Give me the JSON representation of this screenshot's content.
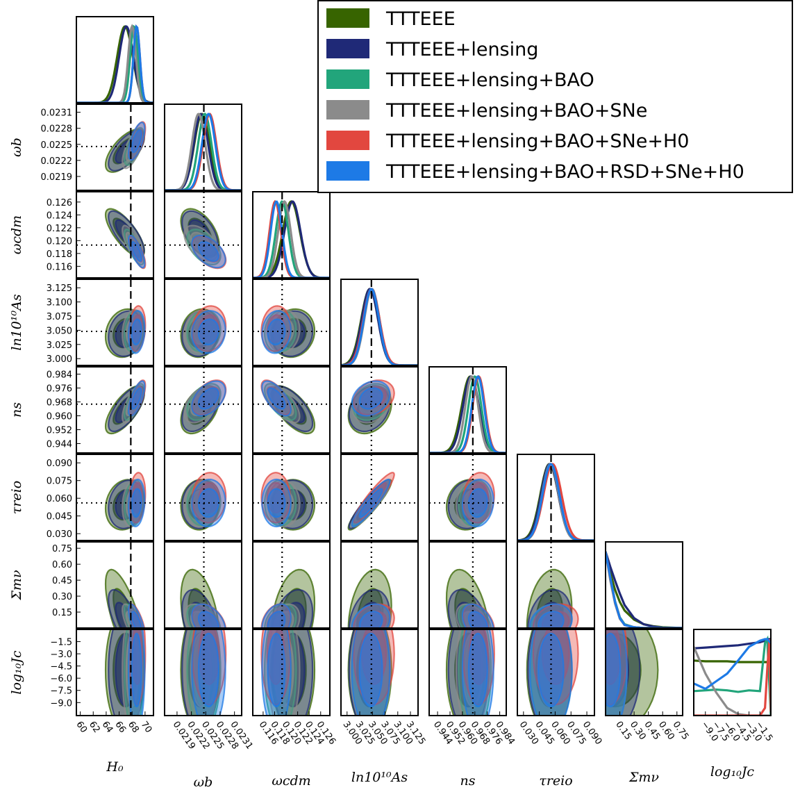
{
  "chart_data": {
    "type": "scatter",
    "kind": "triangle corner plot: 1D marginal posteriors on the diagonal, 68%/95% 2D credible contours below",
    "parameters": [
      {
        "key": "H0",
        "label": "H₀",
        "range": [
          59.4,
          71.3
        ],
        "ticks": [
          60,
          62,
          64,
          66,
          68,
          70
        ],
        "tick_labels": [
          "60",
          "62",
          "64",
          "66",
          "68",
          "70"
        ],
        "fiducial": 67.8,
        "line": "dashed"
      },
      {
        "key": "omega_b",
        "label": "ωb",
        "range": [
          0.02164,
          0.02325
        ],
        "ticks": [
          0.0219,
          0.0222,
          0.0225,
          0.0228,
          0.0231
        ],
        "tick_labels": [
          "0.0219",
          "0.0222",
          "0.0225",
          "0.0228",
          "0.0231"
        ],
        "fiducial": 0.02246,
        "line": "dotted"
      },
      {
        "key": "omega_cdm",
        "label": "ωcdm",
        "range": [
          0.1142,
          0.1276
        ],
        "ticks": [
          0.116,
          0.118,
          0.12,
          0.122,
          0.124,
          0.126
        ],
        "tick_labels": [
          "0.116",
          "0.118",
          "0.120",
          "0.122",
          "0.124",
          "0.126"
        ],
        "fiducial": 0.1193,
        "line": "dotted"
      },
      {
        "key": "ln10_10_As",
        "label": "ln10¹⁰As",
        "range": [
          2.988,
          3.14
        ],
        "ticks": [
          3.0,
          3.025,
          3.05,
          3.075,
          3.1,
          3.125
        ],
        "tick_labels": [
          "3.000",
          "3.025",
          "3.050",
          "3.075",
          "3.100",
          "3.125"
        ],
        "fiducial": 3.048,
        "line": "dotted"
      },
      {
        "key": "n_s",
        "label": "ns",
        "range": [
          0.9386,
          0.9882
        ],
        "ticks": [
          0.944,
          0.952,
          0.96,
          0.968,
          0.976,
          0.984
        ],
        "tick_labels": [
          "0.944",
          "0.952",
          "0.960",
          "0.968",
          "0.976",
          "0.984"
        ],
        "fiducial": 0.9667,
        "line": "dotted"
      },
      {
        "key": "tau_reio",
        "label": "τreio",
        "range": [
          0.0242,
          0.0972
        ],
        "ticks": [
          0.03,
          0.045,
          0.06,
          0.075,
          0.09
        ],
        "tick_labels": [
          "0.030",
          "0.045",
          "0.060",
          "0.075",
          "0.090"
        ],
        "fiducial": 0.0561,
        "line": "dotted"
      },
      {
        "key": "sum_mnu",
        "label": "Σmν",
        "range": [
          0.0,
          0.81
        ],
        "ticks": [
          0.15,
          0.3,
          0.45,
          0.6,
          0.75
        ],
        "tick_labels": [
          "0.15",
          "0.30",
          "0.45",
          "0.60",
          "0.75"
        ],
        "fiducial": null,
        "line": "none"
      },
      {
        "key": "log10_Jc",
        "label": "log₁₀Jc",
        "range": [
          -10.6,
          0.0
        ],
        "ticks": [
          -9.0,
          -7.5,
          -6.0,
          -4.5,
          -3.0,
          -1.5
        ],
        "tick_labels": [
          "−9.0",
          "−7.5",
          "−6.0",
          "−4.5",
          "−3.0",
          "−1.5"
        ],
        "fiducial": null,
        "line": "none"
      }
    ],
    "series": [
      {
        "name": "TTTEEE",
        "color": "#376400",
        "means": [
          66.9,
          0.02238,
          0.1212,
          3.045,
          0.9635,
          0.0545,
          0.1,
          -5.0
        ],
        "sigmas": [
          1.2,
          0.00016,
          0.0015,
          0.017,
          0.0055,
          0.0085,
          0.18,
          3.0
        ],
        "marginal_peaks_x": [
          66.9,
          0.02242,
          0.1209,
          3.045,
          0.965,
          0.0545
        ]
      },
      {
        "name": "TTTEEE+lensing",
        "color": "#1f2977",
        "means": [
          67.1,
          0.02238,
          0.1211,
          3.044,
          0.964,
          0.0548,
          0.06,
          -5.0
        ],
        "sigmas": [
          1.1,
          0.00015,
          0.0014,
          0.016,
          0.0052,
          0.0082,
          0.12,
          3.0
        ],
        "marginal_peaks_x": [
          67.1,
          0.0224,
          0.1211,
          3.045,
          0.9655,
          0.0548
        ]
      },
      {
        "name": "TTTEEE+lensing+BAO",
        "color": "#22a57b",
        "means": [
          68.3,
          0.02246,
          0.119,
          3.048,
          0.968,
          0.056,
          0.05,
          -5.0
        ],
        "sigmas": [
          0.6,
          0.00014,
          0.0011,
          0.015,
          0.0042,
          0.0078,
          0.07,
          3.0
        ],
        "marginal_peaks_x": [
          68.3,
          0.02248,
          0.1193,
          3.048,
          0.968,
          0.056
        ]
      },
      {
        "name": "TTTEEE+lensing+BAO+SNe",
        "color": "#8b8b8b",
        "means": [
          68.0,
          0.0224,
          0.1196,
          3.048,
          0.9665,
          0.0553,
          0.05,
          -5.0
        ],
        "sigmas": [
          0.6,
          0.00014,
          0.0011,
          0.015,
          0.0042,
          0.0078,
          0.07,
          3.0
        ],
        "marginal_peaks_x": [
          68.0,
          0.02235,
          0.1197,
          3.049,
          0.966,
          0.0555
        ]
      },
      {
        "name": "TTTEEE+lensing+BAO+SNe+H0",
        "color": "#e2473f",
        "means": [
          68.8,
          0.02257,
          0.1182,
          3.053,
          0.9705,
          0.0605,
          0.05,
          -3.0
        ],
        "sigmas": [
          0.5,
          0.00014,
          0.001,
          0.016,
          0.004,
          0.0085,
          0.07,
          2.5
        ],
        "marginal_peaks_x": [
          68.7,
          0.02258,
          0.1181,
          3.048,
          0.9705,
          0.0575
        ]
      },
      {
        "name": "TTTEEE+lensing+BAO+RSD+SNe+H0",
        "color": "#1d7ae6",
        "means": [
          68.7,
          0.02256,
          0.1183,
          3.047,
          0.97,
          0.056,
          0.05,
          -5.0
        ],
        "sigmas": [
          0.5,
          0.00014,
          0.001,
          0.015,
          0.004,
          0.008,
          0.07,
          3.0
        ],
        "marginal_peaks_x": [
          68.7,
          0.02256,
          0.1183,
          3.048,
          0.97,
          0.056
        ]
      }
    ],
    "correlations": [
      [
        1,
        0.65,
        -0.75,
        0.15,
        0.7,
        0.15,
        -0.7,
        0
      ],
      [
        0.65,
        1,
        -0.5,
        0.1,
        0.45,
        0.05,
        -0.4,
        0
      ],
      [
        -0.75,
        -0.5,
        1,
        0.1,
        -0.65,
        0.0,
        0.3,
        0
      ],
      [
        0.15,
        0.1,
        0.1,
        1,
        0.25,
        0.92,
        0.25,
        0
      ],
      [
        0.7,
        0.45,
        -0.65,
        0.25,
        1,
        0.1,
        -0.4,
        0
      ],
      [
        0.15,
        0.05,
        0.0,
        0.92,
        0.1,
        1,
        0.2,
        0
      ],
      [
        -0.7,
        -0.4,
        0.3,
        0.25,
        -0.4,
        0.2,
        1,
        0
      ],
      [
        0,
        0,
        0,
        0,
        0,
        0,
        0,
        1
      ]
    ],
    "sum_mnu_marginals": {
      "x": [
        0.0,
        0.05,
        0.1,
        0.15,
        0.2,
        0.3,
        0.4,
        0.5,
        0.6,
        0.81
      ],
      "TTTEEE": [
        1.0,
        0.72,
        0.5,
        0.34,
        0.23,
        0.11,
        0.05,
        0.025,
        0.01,
        0.0
      ],
      "TTTEEE+lensing": [
        1.0,
        0.8,
        0.62,
        0.45,
        0.3,
        0.13,
        0.05,
        0.02,
        0.005,
        0.0
      ],
      "TTTEEE+lensing+BAO": [
        1.0,
        0.65,
        0.35,
        0.14,
        0.05,
        0.01,
        0.0,
        0.0,
        0.0,
        0.0
      ],
      "TTTEEE+lensing+BAO+SNe": [
        1.0,
        0.62,
        0.32,
        0.12,
        0.04,
        0.01,
        0.0,
        0.0,
        0.0,
        0.0
      ],
      "TTTEEE+lensing+BAO+SNe+H0": [
        1.0,
        0.66,
        0.34,
        0.13,
        0.04,
        0.01,
        0.0,
        0.0,
        0.0,
        0.0
      ],
      "TTTEEE+lensing+BAO+RSD+SNe+H0": [
        1.0,
        0.66,
        0.34,
        0.13,
        0.04,
        0.01,
        0.0,
        0.0,
        0.0,
        0.0
      ]
    },
    "log10_Jc_marginals": {
      "x": [
        -10.6,
        -9.0,
        -7.5,
        -6.0,
        -4.5,
        -3.0,
        -1.5,
        -0.8,
        -0.5,
        -0.2,
        0.0
      ],
      "TTTEEE": [
        0.72,
        0.71,
        0.71,
        0.71,
        0.7,
        0.7,
        0.7,
        0.7,
        0.7,
        0.7,
        0.7
      ],
      "TTTEEE+lensing": [
        0.88,
        0.89,
        0.9,
        0.91,
        0.92,
        0.94,
        0.96,
        0.98,
        1.0,
        1.0,
        1.0
      ],
      "TTTEEE+lensing+BAO": [
        0.32,
        0.33,
        0.34,
        0.33,
        0.31,
        0.33,
        0.32,
        0.95,
        1.0,
        0.4,
        0.0
      ],
      "TTTEEE+lensing+BAO+SNe": [
        0.9,
        0.55,
        0.3,
        0.1,
        0.02,
        0.0,
        0.0,
        0.0,
        0.0,
        0.0,
        0.0
      ],
      "TTTEEE+lensing+BAO+SNe+H0": [
        0.0,
        0.0,
        0.0,
        0.0,
        0.0,
        0.0,
        0.0,
        0.1,
        0.6,
        1.0,
        0.05
      ],
      "TTTEEE+lensing+BAO+RSD+SNe+H0": [
        0.42,
        0.35,
        0.45,
        0.55,
        0.72,
        0.9,
        0.98,
        1.0,
        1.0,
        0.97,
        0.95
      ]
    },
    "legend_position": "top-right",
    "grid": false
  }
}
